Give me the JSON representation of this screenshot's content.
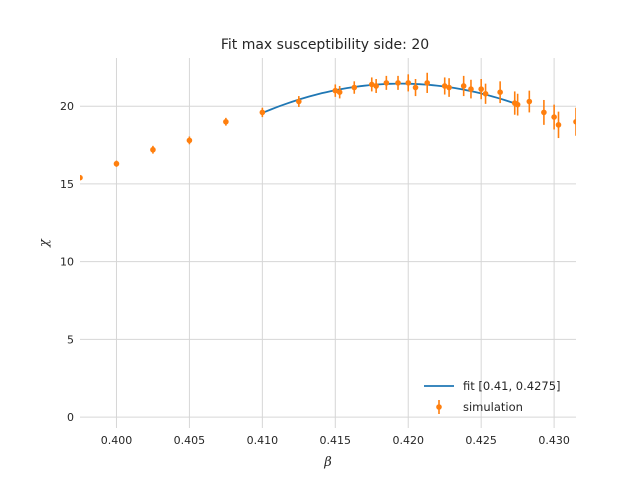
{
  "chart_data": {
    "type": "scatter",
    "title": "Fit max susceptibility side: 20",
    "xlabel": "β",
    "ylabel": "χ",
    "xlim": [
      0.3975,
      0.4315
    ],
    "ylim": [
      -0.7,
      23.1
    ],
    "xticks": [
      0.4,
      0.405,
      0.41,
      0.415,
      0.42,
      0.425,
      0.43
    ],
    "xtick_labels": [
      "0.400",
      "0.405",
      "0.410",
      "0.415",
      "0.420",
      "0.425",
      "0.430"
    ],
    "yticks": [
      0,
      5,
      10,
      15,
      20
    ],
    "ytick_labels": [
      "0",
      "5",
      "10",
      "15",
      "20"
    ],
    "grid": true,
    "legend_position": "bottom-right",
    "colors": {
      "fit": "#1f77b4",
      "simulation": "#ff7f0e"
    },
    "series": [
      {
        "name": "fit [0.41, 0.4275]",
        "kind": "line",
        "x_range": [
          0.41,
          0.4275
        ],
        "peak_x": 0.4195,
        "peak_y": 21.45,
        "curvature": 20900
      },
      {
        "name": "simulation",
        "kind": "errorbar",
        "points": [
          {
            "x": 0.3975,
            "y": 15.4,
            "err": 0.15
          },
          {
            "x": 0.4,
            "y": 16.3,
            "err": 0.2
          },
          {
            "x": 0.4025,
            "y": 17.2,
            "err": 0.25
          },
          {
            "x": 0.405,
            "y": 17.8,
            "err": 0.25
          },
          {
            "x": 0.4075,
            "y": 19.0,
            "err": 0.25
          },
          {
            "x": 0.41,
            "y": 19.6,
            "err": 0.3
          },
          {
            "x": 0.4125,
            "y": 20.3,
            "err": 0.35
          },
          {
            "x": 0.415,
            "y": 21.0,
            "err": 0.4
          },
          {
            "x": 0.4153,
            "y": 20.9,
            "err": 0.4
          },
          {
            "x": 0.4163,
            "y": 21.2,
            "err": 0.4
          },
          {
            "x": 0.4175,
            "y": 21.4,
            "err": 0.45
          },
          {
            "x": 0.4178,
            "y": 21.3,
            "err": 0.45
          },
          {
            "x": 0.4185,
            "y": 21.5,
            "err": 0.45
          },
          {
            "x": 0.4193,
            "y": 21.5,
            "err": 0.45
          },
          {
            "x": 0.42,
            "y": 21.5,
            "err": 0.55
          },
          {
            "x": 0.4205,
            "y": 21.2,
            "err": 0.55
          },
          {
            "x": 0.4213,
            "y": 21.5,
            "err": 0.65
          },
          {
            "x": 0.4225,
            "y": 21.3,
            "err": 0.55
          },
          {
            "x": 0.4228,
            "y": 21.2,
            "err": 0.6
          },
          {
            "x": 0.4238,
            "y": 21.3,
            "err": 0.65
          },
          {
            "x": 0.4243,
            "y": 21.1,
            "err": 0.6
          },
          {
            "x": 0.425,
            "y": 21.1,
            "err": 0.65
          },
          {
            "x": 0.4253,
            "y": 20.8,
            "err": 0.65
          },
          {
            "x": 0.4263,
            "y": 20.9,
            "err": 0.7
          },
          {
            "x": 0.4273,
            "y": 20.2,
            "err": 0.75
          },
          {
            "x": 0.4275,
            "y": 20.1,
            "err": 0.7
          },
          {
            "x": 0.4283,
            "y": 20.3,
            "err": 0.7
          },
          {
            "x": 0.4293,
            "y": 19.6,
            "err": 0.8
          },
          {
            "x": 0.43,
            "y": 19.3,
            "err": 0.8
          },
          {
            "x": 0.4303,
            "y": 18.8,
            "err": 0.85
          },
          {
            "x": 0.4315,
            "y": 19.0,
            "err": 0.9
          }
        ]
      }
    ]
  }
}
